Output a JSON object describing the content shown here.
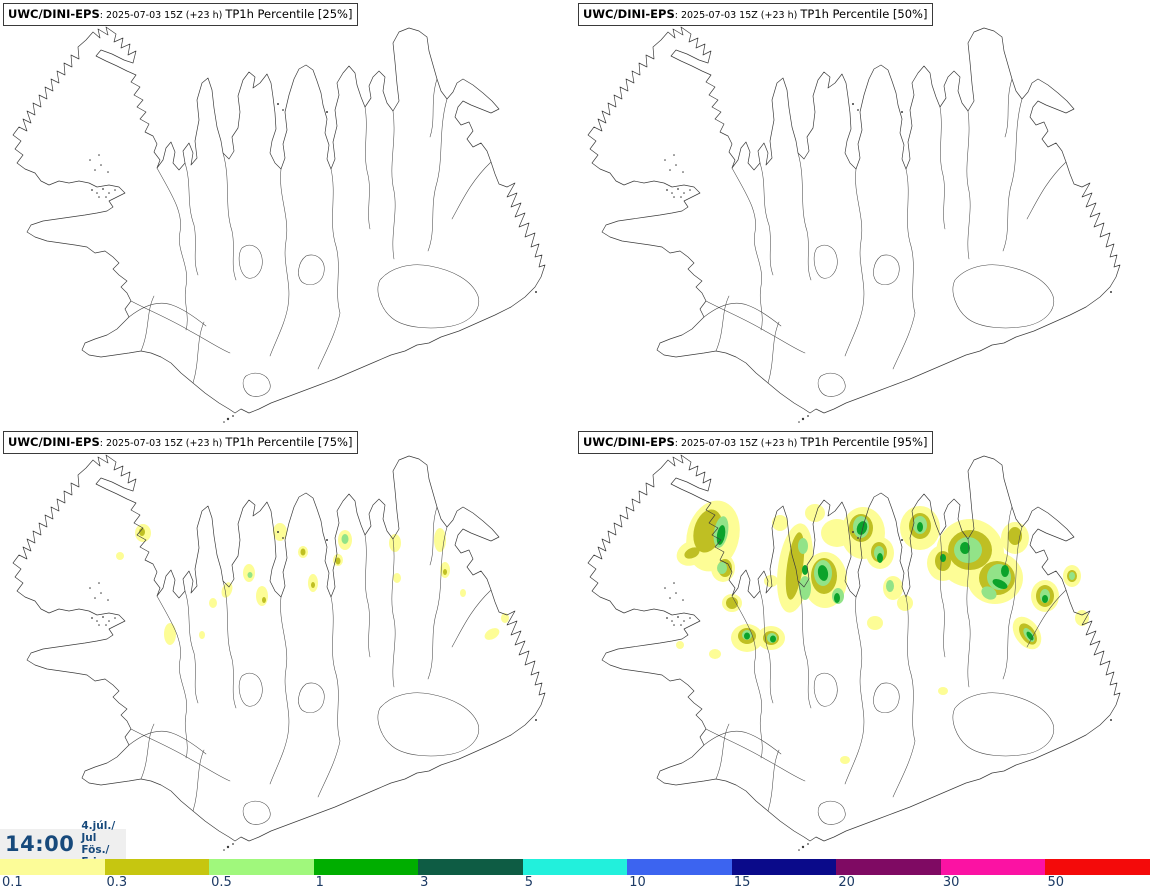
{
  "panels": [
    {
      "model": "UWC/DINI-EPS",
      "run": ": 2025-07-03 15Z (+23 h)",
      "product": "TP1h Percentile [25%]",
      "percentile": "25%"
    },
    {
      "model": "UWC/DINI-EPS",
      "run": ": 2025-07-03 15Z (+23 h)",
      "product": "TP1h Percentile [50%]",
      "percentile": "50%"
    },
    {
      "model": "UWC/DINI-EPS",
      "run": ": 2025-07-03 15Z (+23 h)",
      "product": "TP1h Percentile [75%]",
      "percentile": "75%"
    },
    {
      "model": "UWC/DINI-EPS",
      "run": ": 2025-07-03 15Z (+23 h)",
      "product": "TP1h Percentile [95%]",
      "percentile": "95%"
    }
  ],
  "clock": {
    "time": "14:00",
    "date": "4.júl./ Jul",
    "day": "Fös./ Fri"
  },
  "colorbar": {
    "labels": [
      "0.1",
      "0.3",
      "0.5",
      "1",
      "3",
      "5",
      "10",
      "15",
      "20",
      "30",
      "50"
    ],
    "colors": [
      "#fcfc98",
      "#c6c610",
      "#a0f87c",
      "#00ae00",
      "#0e5c44",
      "#22f0dc",
      "#3c64f0",
      "#0a0a8a",
      "#7f0a63",
      "#fb12a3",
      "#f40a0a"
    ],
    "label_color": "#1c3a64"
  },
  "map": {
    "outline_color": "#3c3c3c",
    "precip_level_colors": [
      "#fdfd96",
      "#bfbf23",
      "#92e388",
      "#0ba32b"
    ]
  }
}
